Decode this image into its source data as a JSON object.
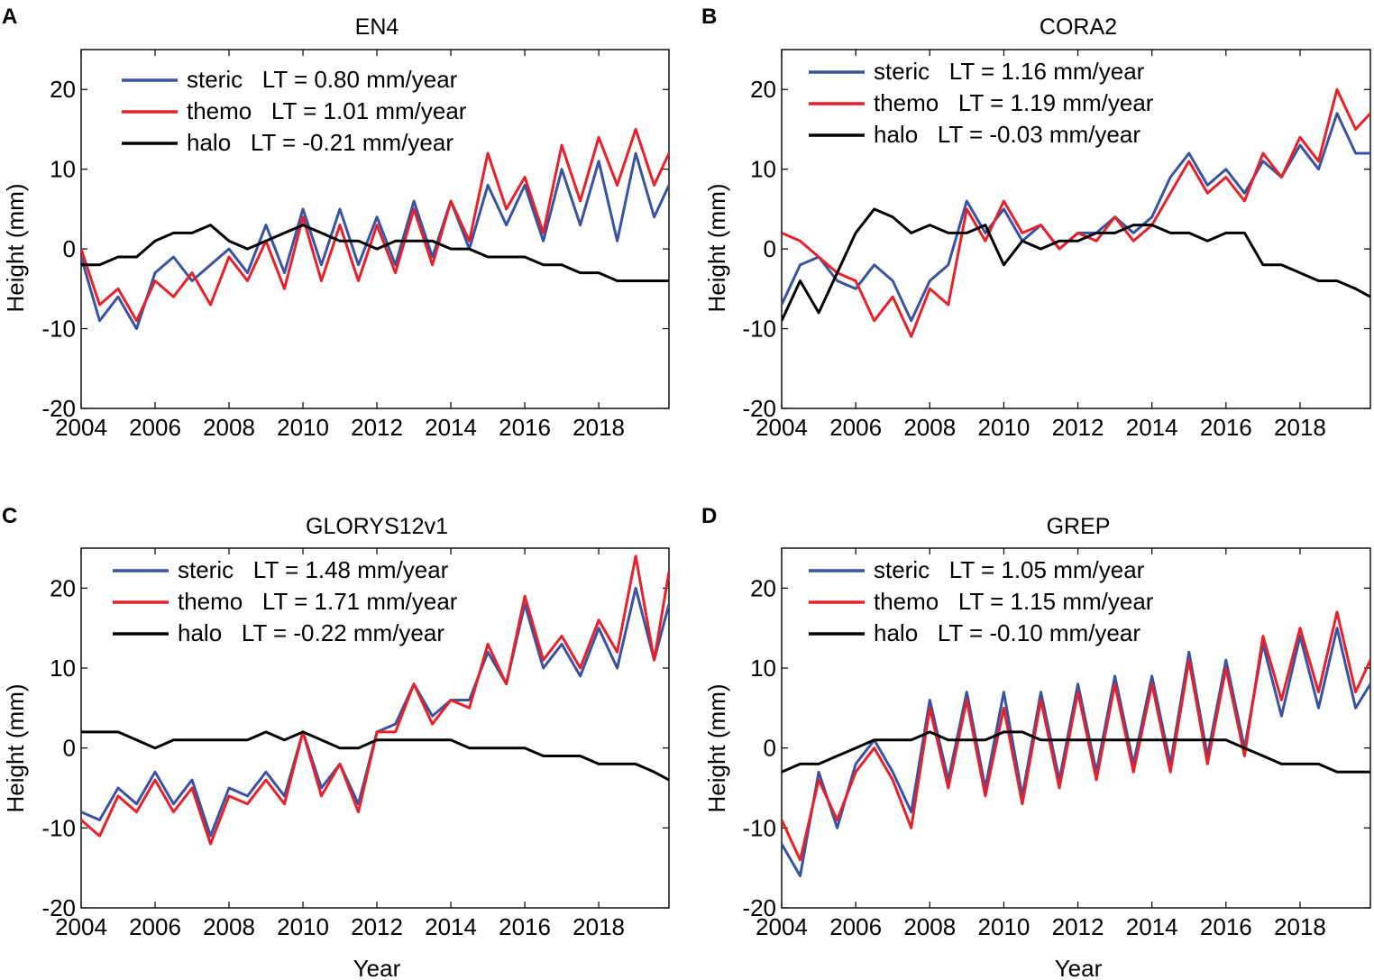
{
  "figure": {
    "colors": {
      "steric": "#3953a4",
      "themo": "#e8202a",
      "halo": "#000000"
    }
  },
  "chart_data": [
    {
      "type": "line",
      "panel_label": "A",
      "title": "EN4",
      "xlabel": "",
      "ylabel": "Height (mm)",
      "xlim": [
        2004,
        2019.9
      ],
      "ylim": [
        -20,
        25
      ],
      "xticks": [
        "2004",
        "2006",
        "2008",
        "2010",
        "2012",
        "2014",
        "2016",
        "2018"
      ],
      "yticks": [
        "-20",
        "-10",
        "0",
        "10",
        "20"
      ],
      "legend_location": "top-left",
      "x": [
        2004.0,
        2004.5,
        2005.0,
        2005.5,
        2006.0,
        2006.5,
        2007.0,
        2007.5,
        2008.0,
        2008.5,
        2009.0,
        2009.5,
        2010.0,
        2010.5,
        2011.0,
        2011.5,
        2012.0,
        2012.5,
        2013.0,
        2013.5,
        2014.0,
        2014.5,
        2015.0,
        2015.5,
        2016.0,
        2016.5,
        2017.0,
        2017.5,
        2018.0,
        2018.5,
        2019.0,
        2019.5,
        2019.9
      ],
      "series": [
        {
          "name": "steric",
          "label": "steric   LT = 0.80 mm/year",
          "color": "#3953a4",
          "values": [
            -1,
            -9,
            -6,
            -10,
            -3,
            -1,
            -4,
            -2,
            0,
            -3,
            3,
            -3,
            5,
            -2,
            5,
            -2,
            4,
            -2,
            6,
            -1,
            6,
            0,
            8,
            3,
            8,
            1,
            10,
            3,
            11,
            1,
            12,
            4,
            8
          ]
        },
        {
          "name": "themo",
          "label": "themo   LT = 1.01 mm/year",
          "color": "#e8202a",
          "values": [
            0,
            -7,
            -5,
            -9,
            -4,
            -6,
            -3,
            -7,
            -1,
            -4,
            1,
            -5,
            4,
            -4,
            3,
            -4,
            3,
            -3,
            5,
            -2,
            6,
            1,
            12,
            5,
            9,
            2,
            13,
            6,
            14,
            8,
            15,
            8,
            12
          ]
        },
        {
          "name": "halo",
          "label": "halo   LT = -0.21 mm/year",
          "color": "#000000",
          "values": [
            -2,
            -2,
            -1,
            -1,
            1,
            2,
            2,
            3,
            1,
            0,
            1,
            2,
            3,
            2,
            1,
            1,
            0,
            1,
            1,
            1,
            0,
            0,
            -1,
            -1,
            -1,
            -2,
            -2,
            -3,
            -3,
            -4,
            -4,
            -4,
            -4
          ]
        }
      ]
    },
    {
      "type": "line",
      "panel_label": "B",
      "title": "CORA2",
      "xlabel": "",
      "ylabel": "Height (mm)",
      "xlim": [
        2004,
        2019.9
      ],
      "ylim": [
        -20,
        25
      ],
      "xticks": [
        "2004",
        "2006",
        "2008",
        "2010",
        "2012",
        "2014",
        "2016",
        "2018"
      ],
      "yticks": [
        "-20",
        "-10",
        "0",
        "10",
        "20"
      ],
      "legend_location": "top-left",
      "x": [
        2004.0,
        2004.5,
        2005.0,
        2005.5,
        2006.0,
        2006.5,
        2007.0,
        2007.5,
        2008.0,
        2008.5,
        2009.0,
        2009.5,
        2010.0,
        2010.5,
        2011.0,
        2011.5,
        2012.0,
        2012.5,
        2013.0,
        2013.5,
        2014.0,
        2014.5,
        2015.0,
        2015.5,
        2016.0,
        2016.5,
        2017.0,
        2017.5,
        2018.0,
        2018.5,
        2019.0,
        2019.5,
        2019.9
      ],
      "series": [
        {
          "name": "steric",
          "label": "steric   LT = 1.16 mm/year",
          "color": "#3953a4",
          "values": [
            -7,
            -2,
            -1,
            -4,
            -5,
            -2,
            -4,
            -9,
            -4,
            -2,
            6,
            2,
            5,
            1,
            3,
            0,
            2,
            2,
            4,
            2,
            4,
            9,
            12,
            8,
            10,
            7,
            11,
            9,
            13,
            10,
            17,
            12,
            12
          ]
        },
        {
          "name": "themo",
          "label": "themo   LT = 1.19 mm/year",
          "color": "#e8202a",
          "values": [
            2,
            1,
            -1,
            -3,
            -4,
            -9,
            -6,
            -11,
            -5,
            -7,
            5,
            1,
            6,
            2,
            3,
            0,
            2,
            1,
            4,
            1,
            3,
            7,
            11,
            7,
            9,
            6,
            12,
            9,
            14,
            11,
            20,
            15,
            17
          ]
        },
        {
          "name": "halo",
          "label": "halo   LT = -0.03 mm/year",
          "color": "#000000",
          "values": [
            -9,
            -4,
            -8,
            -3,
            2,
            5,
            4,
            2,
            3,
            2,
            2,
            3,
            -2,
            1,
            0,
            1,
            1,
            2,
            2,
            3,
            3,
            2,
            2,
            1,
            2,
            2,
            -2,
            -2,
            -3,
            -4,
            -4,
            -5,
            -6
          ]
        }
      ]
    },
    {
      "type": "line",
      "panel_label": "C",
      "title": "GLORYS12v1",
      "xlabel": "Year",
      "ylabel": "Height (mm)",
      "xlim": [
        2004,
        2019.9
      ],
      "ylim": [
        -20,
        25
      ],
      "xticks": [
        "2004",
        "2006",
        "2008",
        "2010",
        "2012",
        "2014",
        "2016",
        "2018"
      ],
      "yticks": [
        "-20",
        "-10",
        "0",
        "10",
        "20"
      ],
      "legend_location": "top-left",
      "x": [
        2004.0,
        2004.5,
        2005.0,
        2005.5,
        2006.0,
        2006.5,
        2007.0,
        2007.5,
        2008.0,
        2008.5,
        2009.0,
        2009.5,
        2010.0,
        2010.5,
        2011.0,
        2011.5,
        2012.0,
        2012.5,
        2013.0,
        2013.5,
        2014.0,
        2014.5,
        2015.0,
        2015.5,
        2016.0,
        2016.5,
        2017.0,
        2017.5,
        2018.0,
        2018.5,
        2019.0,
        2019.5,
        2019.9
      ],
      "series": [
        {
          "name": "steric",
          "label": "steric   LT = 1.48 mm/year",
          "color": "#3953a4",
          "values": [
            -8,
            -9,
            -5,
            -7,
            -3,
            -7,
            -4,
            -11,
            -5,
            -6,
            -3,
            -6,
            2,
            -5,
            -2,
            -7,
            2,
            3,
            8,
            4,
            6,
            6,
            12,
            8,
            18,
            10,
            13,
            9,
            15,
            10,
            20,
            11,
            18
          ]
        },
        {
          "name": "themo",
          "label": "themo   LT = 1.71 mm/year",
          "color": "#e8202a",
          "values": [
            -9,
            -11,
            -6,
            -8,
            -4,
            -8,
            -5,
            -12,
            -6,
            -7,
            -4,
            -7,
            2,
            -6,
            -2,
            -8,
            2,
            2,
            8,
            3,
            6,
            5,
            13,
            8,
            19,
            11,
            14,
            10,
            16,
            12,
            24,
            11,
            22
          ]
        },
        {
          "name": "halo",
          "label": "halo   LT = -0.22 mm/year",
          "color": "#000000",
          "values": [
            2,
            2,
            2,
            1,
            0,
            1,
            1,
            1,
            1,
            1,
            2,
            1,
            2,
            1,
            0,
            0,
            1,
            1,
            1,
            1,
            1,
            0,
            0,
            0,
            0,
            -1,
            -1,
            -1,
            -2,
            -2,
            -2,
            -3,
            -4
          ]
        }
      ]
    },
    {
      "type": "line",
      "panel_label": "D",
      "title": "GREP",
      "xlabel": "Year",
      "ylabel": "Height (mm)",
      "xlim": [
        2004,
        2019.9
      ],
      "ylim": [
        -20,
        25
      ],
      "xticks": [
        "2004",
        "2006",
        "2008",
        "2010",
        "2012",
        "2014",
        "2016",
        "2018"
      ],
      "yticks": [
        "-20",
        "-10",
        "0",
        "10",
        "20"
      ],
      "legend_location": "top-left",
      "x": [
        2004.0,
        2004.5,
        2005.0,
        2005.5,
        2006.0,
        2006.5,
        2007.0,
        2007.5,
        2008.0,
        2008.5,
        2009.0,
        2009.5,
        2010.0,
        2010.5,
        2011.0,
        2011.5,
        2012.0,
        2012.5,
        2013.0,
        2013.5,
        2014.0,
        2014.5,
        2015.0,
        2015.5,
        2016.0,
        2016.5,
        2017.0,
        2017.5,
        2018.0,
        2018.5,
        2019.0,
        2019.5,
        2019.9
      ],
      "series": [
        {
          "name": "steric",
          "label": "steric   LT = 1.05 mm/year",
          "color": "#3953a4",
          "values": [
            -12,
            -16,
            -3,
            -10,
            -2,
            1,
            -3,
            -8,
            6,
            -4,
            7,
            -5,
            7,
            -6,
            7,
            -4,
            8,
            -3,
            9,
            -2,
            9,
            -2,
            12,
            -1,
            11,
            0,
            13,
            4,
            14,
            5,
            15,
            5,
            8
          ]
        },
        {
          "name": "themo",
          "label": "themo   LT = 1.15 mm/year",
          "color": "#e8202a",
          "values": [
            -9,
            -14,
            -4,
            -9,
            -3,
            0,
            -4,
            -10,
            5,
            -5,
            6,
            -6,
            5,
            -7,
            6,
            -5,
            7,
            -4,
            8,
            -3,
            8,
            -3,
            11,
            -2,
            10,
            -1,
            14,
            6,
            15,
            7,
            17,
            7,
            11
          ]
        },
        {
          "name": "halo",
          "label": "halo   LT = -0.10 mm/year",
          "color": "#000000",
          "values": [
            -3,
            -2,
            -2,
            -1,
            0,
            1,
            1,
            1,
            2,
            1,
            1,
            1,
            2,
            2,
            1,
            1,
            1,
            1,
            1,
            1,
            1,
            1,
            1,
            1,
            1,
            0,
            -1,
            -2,
            -2,
            -2,
            -3,
            -3,
            -3
          ]
        }
      ]
    }
  ]
}
